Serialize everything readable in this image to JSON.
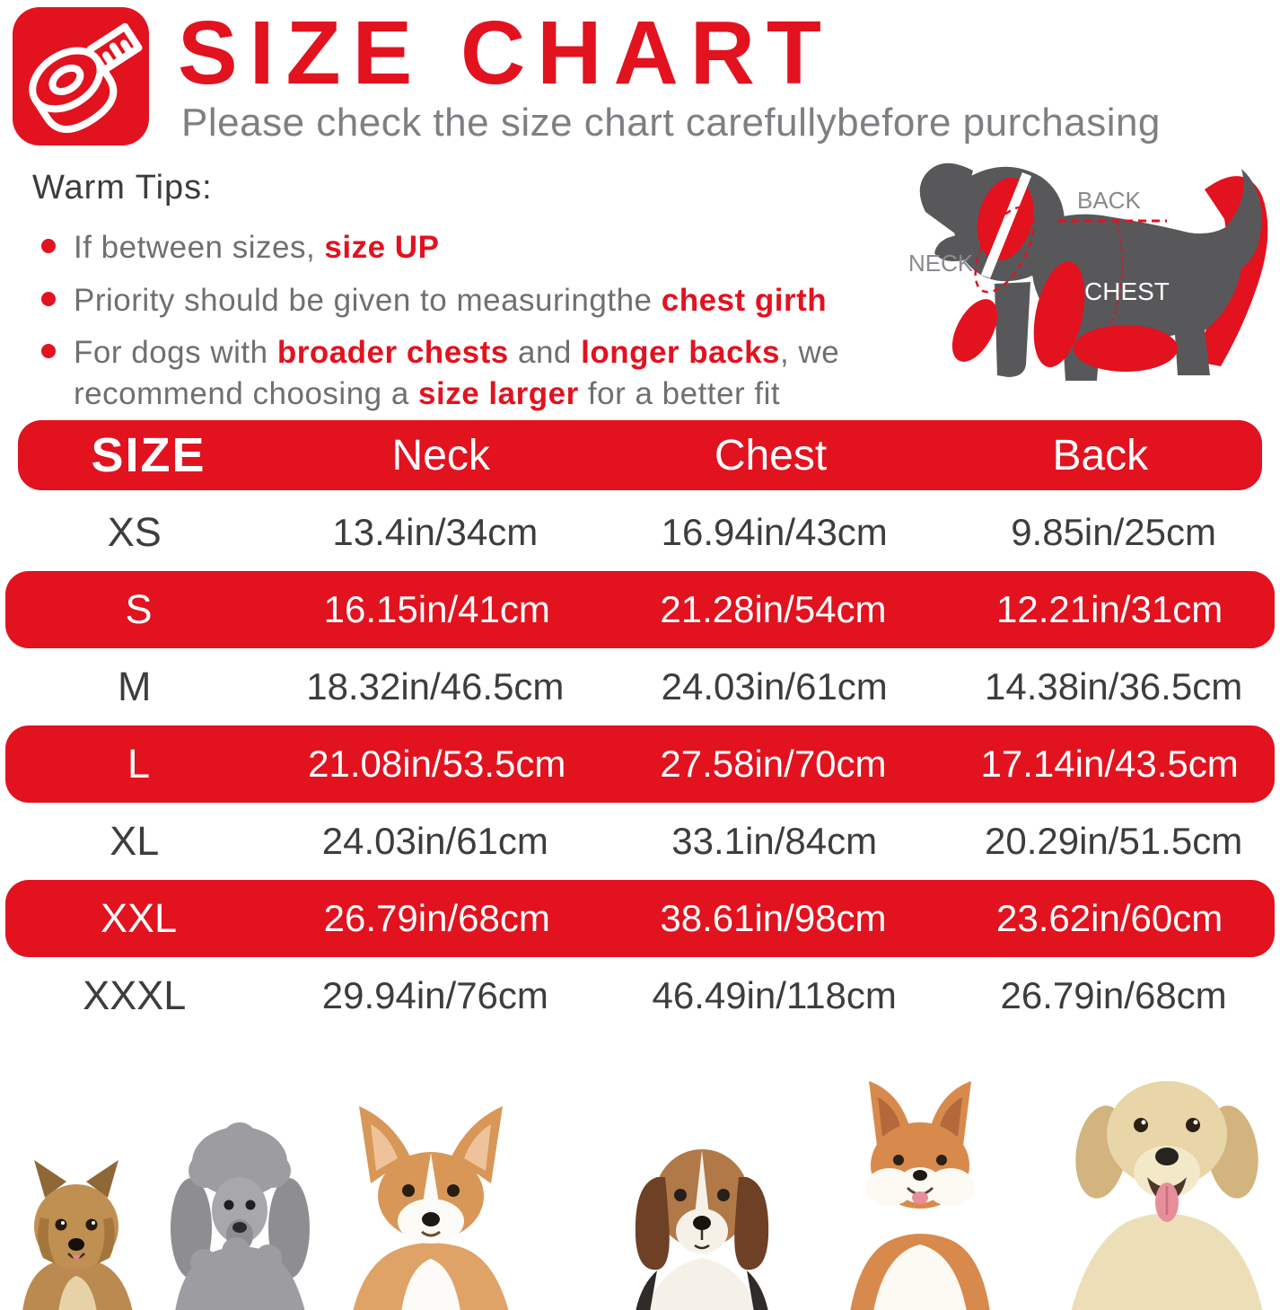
{
  "header": {
    "title": "SIZE CHART",
    "subtitle": "Please check the size chart carefullybefore purchasing",
    "icon": "tape-measure-icon"
  },
  "warm_tips": {
    "heading": "Warm Tips:",
    "tips": [
      {
        "parts": [
          {
            "text": "If between sizes, ",
            "em": false
          },
          {
            "text": "size UP",
            "em": true
          }
        ]
      },
      {
        "parts": [
          {
            "text": "Priority should be given to measuringthe ",
            "em": false
          },
          {
            "text": "chest girth",
            "em": true
          }
        ]
      },
      {
        "parts": [
          {
            "text": "For dogs with ",
            "em": false
          },
          {
            "text": "broader chests",
            "em": true
          },
          {
            "text": " and ",
            "em": false
          },
          {
            "text": "longer backs",
            "em": true
          },
          {
            "text": ", we recommend choosing a ",
            "em": false
          },
          {
            "text": "size larger",
            "em": true
          },
          {
            "text": " for a better fit",
            "em": false
          }
        ]
      }
    ]
  },
  "diagram": {
    "labels": {
      "neck": "NECK",
      "back": "BACK",
      "chest": "CHEST"
    }
  },
  "chart_data": {
    "type": "table",
    "columns": [
      "SIZE",
      "Neck",
      "Chest",
      "Back"
    ],
    "rows": [
      {
        "size": "XS",
        "neck": "13.4in/34cm",
        "chest": "16.94in/43cm",
        "back": "9.85in/25cm",
        "highlight": false
      },
      {
        "size": "S",
        "neck": "16.15in/41cm",
        "chest": "21.28in/54cm",
        "back": "12.21in/31cm",
        "highlight": true
      },
      {
        "size": "M",
        "neck": "18.32in/46.5cm",
        "chest": "24.03in/61cm",
        "back": "14.38in/36.5cm",
        "highlight": false
      },
      {
        "size": "L",
        "neck": "21.08in/53.5cm",
        "chest": "27.58in/70cm",
        "back": "17.14in/43.5cm",
        "highlight": true
      },
      {
        "size": "XL",
        "neck": "24.03in/61cm",
        "chest": "33.1in/84cm",
        "back": "20.29in/51.5cm",
        "highlight": false
      },
      {
        "size": "XXL",
        "neck": "26.79in/68cm",
        "chest": "38.61in/98cm",
        "back": "23.62in/60cm",
        "highlight": true
      },
      {
        "size": "XXXL",
        "neck": "29.94in/76cm",
        "chest": "46.49in/118cm",
        "back": "26.79in/68cm",
        "highlight": false
      }
    ]
  },
  "dogs": [
    "yorkshire-terrier",
    "poodle",
    "corgi",
    "beagle",
    "shiba-inu",
    "golden-retriever"
  ],
  "colors": {
    "accent_red": "#e2121f",
    "diagram_gray": "#58585b",
    "tip_text_gray": "#6f6f73",
    "subtitle_gray": "#7f7f83",
    "table_text": "#3f3c3d"
  }
}
